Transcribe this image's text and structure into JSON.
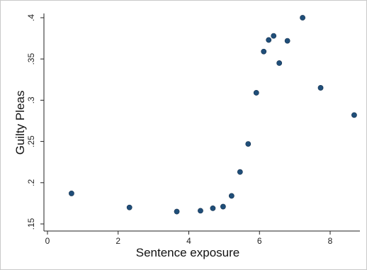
{
  "chart_data": {
    "type": "scatter",
    "title": "",
    "xlabel": "Sentence exposure",
    "ylabel": "Guilty Pleas",
    "xlim": [
      0,
      8.8
    ],
    "ylim": [
      0.15,
      0.4
    ],
    "x_ticks": [
      0,
      2,
      4,
      6,
      8
    ],
    "x_tick_labels": [
      "0",
      "2",
      "4",
      "6",
      "8"
    ],
    "y_ticks": [
      0.15,
      0.2,
      0.25,
      0.3,
      0.35,
      0.4
    ],
    "y_tick_labels": [
      ".15",
      ".2",
      ".25",
      ".3",
      ".35",
      ".4"
    ],
    "grid": false,
    "marker_color": "#1f4e79",
    "points": [
      {
        "x": 0.68,
        "y": 0.187
      },
      {
        "x": 2.32,
        "y": 0.17
      },
      {
        "x": 3.66,
        "y": 0.165
      },
      {
        "x": 4.33,
        "y": 0.166
      },
      {
        "x": 4.68,
        "y": 0.169
      },
      {
        "x": 4.97,
        "y": 0.171
      },
      {
        "x": 5.21,
        "y": 0.184
      },
      {
        "x": 5.45,
        "y": 0.213
      },
      {
        "x": 5.68,
        "y": 0.247
      },
      {
        "x": 5.91,
        "y": 0.309
      },
      {
        "x": 6.12,
        "y": 0.359
      },
      {
        "x": 6.26,
        "y": 0.373
      },
      {
        "x": 6.4,
        "y": 0.378
      },
      {
        "x": 6.56,
        "y": 0.345
      },
      {
        "x": 6.79,
        "y": 0.372
      },
      {
        "x": 7.22,
        "y": 0.4
      },
      {
        "x": 7.73,
        "y": 0.315
      },
      {
        "x": 8.68,
        "y": 0.282
      }
    ]
  }
}
